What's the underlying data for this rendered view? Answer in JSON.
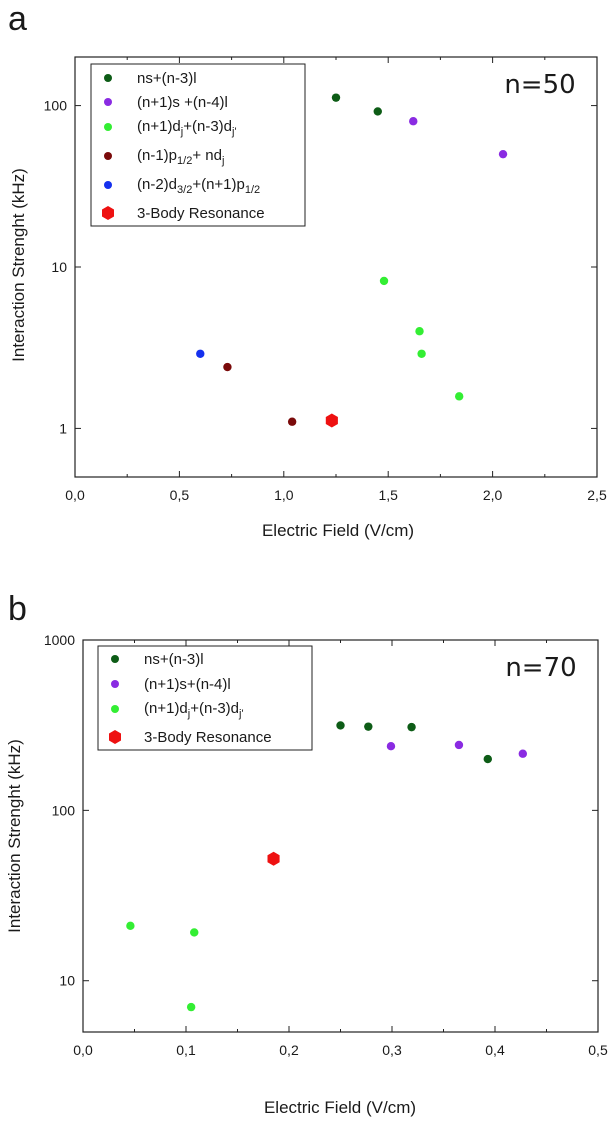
{
  "panels": [
    {
      "letter": "a",
      "inset": "n=50",
      "chart_data": {
        "type": "scatter",
        "xlabel": "Electric Field (V/cm)",
        "ylabel": "Interaction Strenght (kHz)",
        "xlim": [
          0,
          2.5
        ],
        "ylim": [
          0.5,
          200
        ],
        "yscale": "log",
        "xticks": [
          "0,0",
          "0,5",
          "1,0",
          "1,5",
          "2,0",
          "2,5"
        ],
        "xtick_values": [
          0,
          0.5,
          1.0,
          1.5,
          2.0,
          2.5
        ],
        "yticks": [
          "1",
          "10",
          "100"
        ],
        "ytick_values": [
          1,
          10,
          100
        ],
        "legend_position": "top-left",
        "series": [
          {
            "name": "ns+(n-3)l",
            "color": "#0d5c16",
            "marker": "circle",
            "points": [
              [
                1.25,
                112
              ],
              [
                1.45,
                92
              ]
            ]
          },
          {
            "name": "(n+1)s +(n-4)l",
            "color": "#8a2be2",
            "marker": "circle",
            "points": [
              [
                1.62,
                80
              ],
              [
                2.05,
                50
              ]
            ]
          },
          {
            "name": "(n+1)dj+(n-3)dj'",
            "color": "#33ee33",
            "marker": "circle",
            "points": [
              [
                1.48,
                8.2
              ],
              [
                1.65,
                4.0
              ],
              [
                1.66,
                2.9
              ],
              [
                1.84,
                1.58
              ]
            ]
          },
          {
            "name": "(n-1)p1/2+ ndj",
            "color": "#7a0a0a",
            "marker": "circle",
            "points": [
              [
                0.73,
                2.4
              ],
              [
                1.04,
                1.1
              ]
            ]
          },
          {
            "name": "(n-2)d3/2+(n+1)p1/2",
            "color": "#1530ee",
            "marker": "circle",
            "points": [
              [
                0.6,
                2.9
              ]
            ]
          },
          {
            "name": "3-Body Resonance",
            "color": "#ee1111",
            "marker": "hexagon",
            "points": [
              [
                1.23,
                1.12
              ]
            ]
          }
        ]
      }
    },
    {
      "letter": "b",
      "inset": "n=70",
      "chart_data": {
        "type": "scatter",
        "xlabel": "Electric Field (V/cm)",
        "ylabel": "Interaction Strenght (kHz)",
        "xlim": [
          0,
          0.5
        ],
        "ylim": [
          5,
          1000
        ],
        "yscale": "log",
        "xticks": [
          "0,0",
          "0,1",
          "0,2",
          "0,3",
          "0,4",
          "0,5"
        ],
        "xtick_values": [
          0,
          0.1,
          0.2,
          0.3,
          0.4,
          0.5
        ],
        "yticks": [
          "10",
          "100",
          "1000"
        ],
        "ytick_values": [
          10,
          100,
          1000
        ],
        "legend_position": "top-left",
        "series": [
          {
            "name": "ns+(n-3)l",
            "color": "#0d5c16",
            "marker": "circle",
            "points": [
              [
                0.25,
                315
              ],
              [
                0.277,
                310
              ],
              [
                0.319,
                308
              ],
              [
                0.393,
                200
              ]
            ]
          },
          {
            "name": "(n+1)s+(n-4)l",
            "color": "#8a2be2",
            "marker": "circle",
            "points": [
              [
                0.299,
                238
              ],
              [
                0.365,
                242
              ],
              [
                0.427,
                215
              ]
            ]
          },
          {
            "name": "(n+1)dj+(n-3)dj'",
            "color": "#33ee33",
            "marker": "circle",
            "points": [
              [
                0.046,
                21
              ],
              [
                0.108,
                19.2
              ],
              [
                0.105,
                7.0
              ]
            ]
          },
          {
            "name": "3-Body Resonance",
            "color": "#ee1111",
            "marker": "hexagon",
            "points": [
              [
                0.185,
                52
              ]
            ]
          }
        ]
      }
    }
  ]
}
